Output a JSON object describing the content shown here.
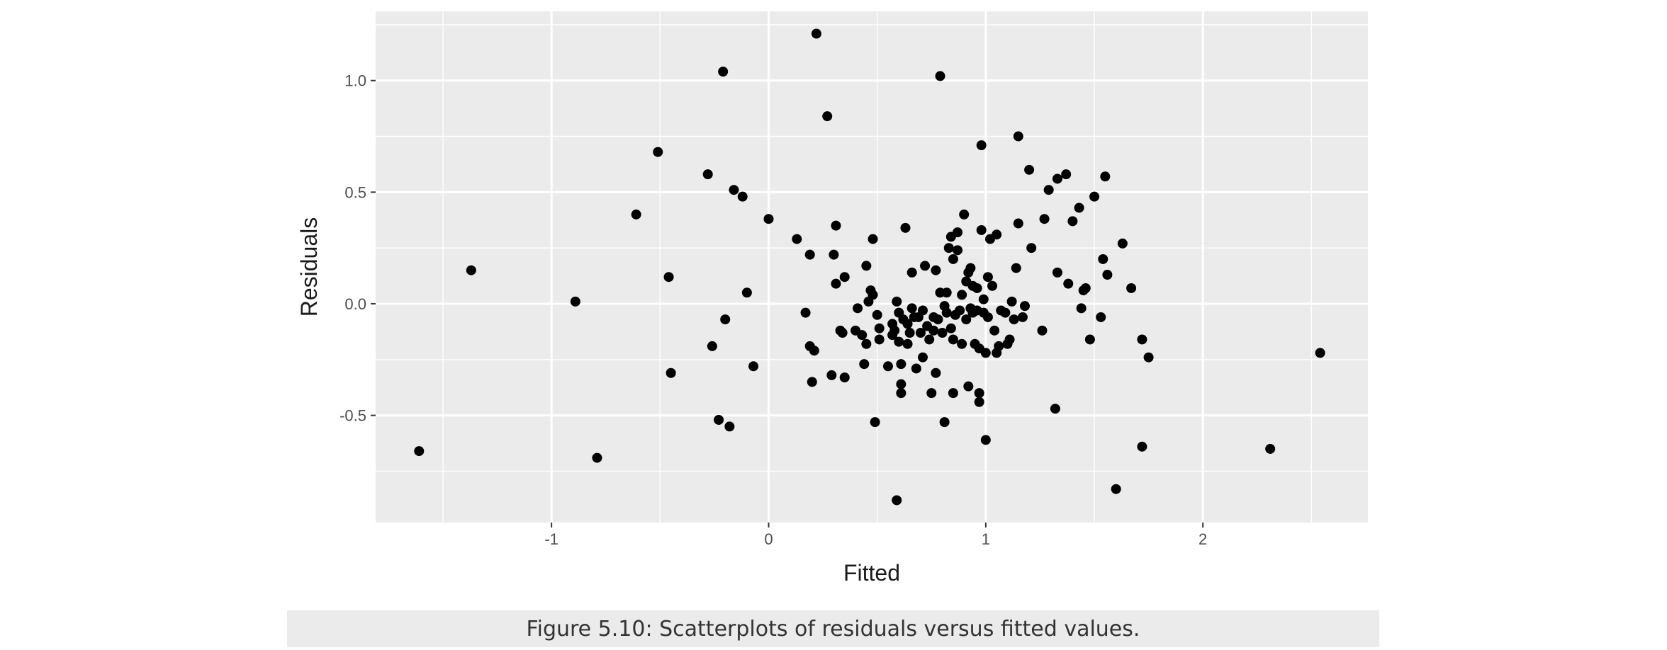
{
  "caption": "Figure 5.10: Scatterplots of residuals versus fitted values.",
  "colors": {
    "panel": "#ebebeb",
    "grid_major": "#ffffff",
    "point": "#000000"
  },
  "chart_data": {
    "type": "scatter",
    "xlabel": "Fitted",
    "ylabel": "Residuals",
    "xlim": [
      -1.81,
      2.76
    ],
    "ylim": [
      -0.98,
      1.31
    ],
    "x_ticks": [
      -1,
      0,
      1,
      2
    ],
    "x_tick_labels": [
      "-1",
      "0",
      "1",
      "2"
    ],
    "y_ticks": [
      -0.5,
      0.0,
      0.5,
      1.0
    ],
    "y_tick_labels": [
      "-0.5",
      "0.0",
      "0.5",
      "1.0"
    ],
    "grid": true,
    "points": [
      [
        -1.61,
        -0.66
      ],
      [
        -1.37,
        0.15
      ],
      [
        -0.89,
        0.01
      ],
      [
        -0.79,
        -0.69
      ],
      [
        -0.61,
        0.4
      ],
      [
        -0.51,
        0.68
      ],
      [
        -0.46,
        0.12
      ],
      [
        -0.45,
        -0.31
      ],
      [
        -0.28,
        0.58
      ],
      [
        -0.26,
        -0.19
      ],
      [
        -0.23,
        -0.52
      ],
      [
        -0.21,
        1.04
      ],
      [
        -0.2,
        -0.07
      ],
      [
        -0.18,
        -0.55
      ],
      [
        -0.16,
        0.51
      ],
      [
        -0.12,
        0.48
      ],
      [
        -0.1,
        0.05
      ],
      [
        -0.07,
        -0.28
      ],
      [
        0.0,
        0.38
      ],
      [
        0.13,
        0.29
      ],
      [
        0.17,
        -0.04
      ],
      [
        0.19,
        0.22
      ],
      [
        0.19,
        -0.19
      ],
      [
        0.2,
        -0.35
      ],
      [
        0.21,
        -0.21
      ],
      [
        0.22,
        1.21
      ],
      [
        0.27,
        0.84
      ],
      [
        0.29,
        -0.32
      ],
      [
        0.3,
        0.22
      ],
      [
        0.31,
        0.35
      ],
      [
        0.31,
        0.09
      ],
      [
        0.33,
        -0.12
      ],
      [
        0.34,
        -0.13
      ],
      [
        0.35,
        0.12
      ],
      [
        0.35,
        -0.33
      ],
      [
        0.4,
        -0.12
      ],
      [
        0.41,
        -0.02
      ],
      [
        0.43,
        -0.14
      ],
      [
        0.44,
        -0.27
      ],
      [
        0.45,
        0.17
      ],
      [
        0.45,
        -0.18
      ],
      [
        0.46,
        0.01
      ],
      [
        0.47,
        0.06
      ],
      [
        0.48,
        0.29
      ],
      [
        0.48,
        0.04
      ],
      [
        0.49,
        -0.53
      ],
      [
        0.5,
        -0.05
      ],
      [
        0.51,
        -0.11
      ],
      [
        0.51,
        -0.16
      ],
      [
        0.55,
        -0.28
      ],
      [
        0.57,
        -0.09
      ],
      [
        0.57,
        -0.14
      ],
      [
        0.58,
        -0.12
      ],
      [
        0.59,
        -0.88
      ],
      [
        0.59,
        0.01
      ],
      [
        0.6,
        -0.04
      ],
      [
        0.6,
        -0.17
      ],
      [
        0.61,
        -0.36
      ],
      [
        0.61,
        -0.27
      ],
      [
        0.61,
        -0.4
      ],
      [
        0.62,
        -0.07
      ],
      [
        0.63,
        0.34
      ],
      [
        0.64,
        -0.09
      ],
      [
        0.64,
        -0.18
      ],
      [
        0.65,
        -0.13
      ],
      [
        0.66,
        0.14
      ],
      [
        0.66,
        -0.02
      ],
      [
        0.67,
        -0.06
      ],
      [
        0.68,
        -0.29
      ],
      [
        0.69,
        -0.06
      ],
      [
        0.7,
        -0.13
      ],
      [
        0.71,
        -0.03
      ],
      [
        0.71,
        -0.24
      ],
      [
        0.72,
        0.17
      ],
      [
        0.73,
        -0.1
      ],
      [
        0.74,
        -0.16
      ],
      [
        0.75,
        -0.4
      ],
      [
        0.76,
        -0.12
      ],
      [
        0.76,
        -0.06
      ],
      [
        0.77,
        0.15
      ],
      [
        0.77,
        -0.31
      ],
      [
        0.78,
        -0.07
      ],
      [
        0.79,
        0.05
      ],
      [
        0.79,
        1.02
      ],
      [
        0.8,
        -0.13
      ],
      [
        0.81,
        -0.01
      ],
      [
        0.81,
        -0.53
      ],
      [
        0.82,
        0.05
      ],
      [
        0.82,
        -0.04
      ],
      [
        0.83,
        0.25
      ],
      [
        0.84,
        0.3
      ],
      [
        0.84,
        -0.11
      ],
      [
        0.85,
        0.2
      ],
      [
        0.85,
        -0.16
      ],
      [
        0.85,
        -0.4
      ],
      [
        0.86,
        -0.05
      ],
      [
        0.87,
        0.32
      ],
      [
        0.87,
        0.24
      ],
      [
        0.88,
        -0.03
      ],
      [
        0.89,
        0.04
      ],
      [
        0.89,
        -0.18
      ],
      [
        0.9,
        0.4
      ],
      [
        0.91,
        0.1
      ],
      [
        0.91,
        -0.07
      ],
      [
        0.92,
        0.14
      ],
      [
        0.92,
        -0.37
      ],
      [
        0.93,
        0.16
      ],
      [
        0.93,
        -0.02
      ],
      [
        0.94,
        0.08
      ],
      [
        0.94,
        -0.04
      ],
      [
        0.95,
        -0.18
      ],
      [
        0.96,
        0.07
      ],
      [
        0.96,
        -0.03
      ],
      [
        0.97,
        -0.2
      ],
      [
        0.97,
        -0.4
      ],
      [
        0.97,
        -0.44
      ],
      [
        0.98,
        0.71
      ],
      [
        0.98,
        0.33
      ],
      [
        0.99,
        0.02
      ],
      [
        0.99,
        -0.04
      ],
      [
        1.0,
        -0.22
      ],
      [
        1.0,
        -0.61
      ],
      [
        1.01,
        0.12
      ],
      [
        1.01,
        -0.06
      ],
      [
        1.02,
        0.29
      ],
      [
        1.03,
        0.08
      ],
      [
        1.04,
        -0.12
      ],
      [
        1.05,
        0.31
      ],
      [
        1.05,
        -0.22
      ],
      [
        1.06,
        -0.19
      ],
      [
        1.07,
        -0.03
      ],
      [
        1.09,
        -0.04
      ],
      [
        1.1,
        -0.18
      ],
      [
        1.11,
        -0.16
      ],
      [
        1.12,
        0.01
      ],
      [
        1.13,
        -0.07
      ],
      [
        1.14,
        0.16
      ],
      [
        1.15,
        0.36
      ],
      [
        1.15,
        0.75
      ],
      [
        1.17,
        -0.06
      ],
      [
        1.18,
        -0.01
      ],
      [
        1.2,
        0.6
      ],
      [
        1.21,
        0.25
      ],
      [
        1.26,
        -0.12
      ],
      [
        1.27,
        0.38
      ],
      [
        1.29,
        0.51
      ],
      [
        1.32,
        -0.47
      ],
      [
        1.33,
        0.56
      ],
      [
        1.33,
        0.14
      ],
      [
        1.37,
        0.58
      ],
      [
        1.38,
        0.09
      ],
      [
        1.4,
        0.37
      ],
      [
        1.43,
        0.43
      ],
      [
        1.44,
        -0.02
      ],
      [
        1.45,
        0.06
      ],
      [
        1.46,
        0.07
      ],
      [
        1.48,
        -0.16
      ],
      [
        1.5,
        0.48
      ],
      [
        1.53,
        -0.06
      ],
      [
        1.54,
        0.2
      ],
      [
        1.55,
        0.57
      ],
      [
        1.56,
        0.13
      ],
      [
        1.6,
        -0.83
      ],
      [
        1.63,
        0.27
      ],
      [
        1.67,
        0.07
      ],
      [
        1.72,
        -0.16
      ],
      [
        1.72,
        -0.64
      ],
      [
        1.75,
        -0.24
      ],
      [
        2.31,
        -0.65
      ],
      [
        2.54,
        -0.22
      ]
    ]
  }
}
